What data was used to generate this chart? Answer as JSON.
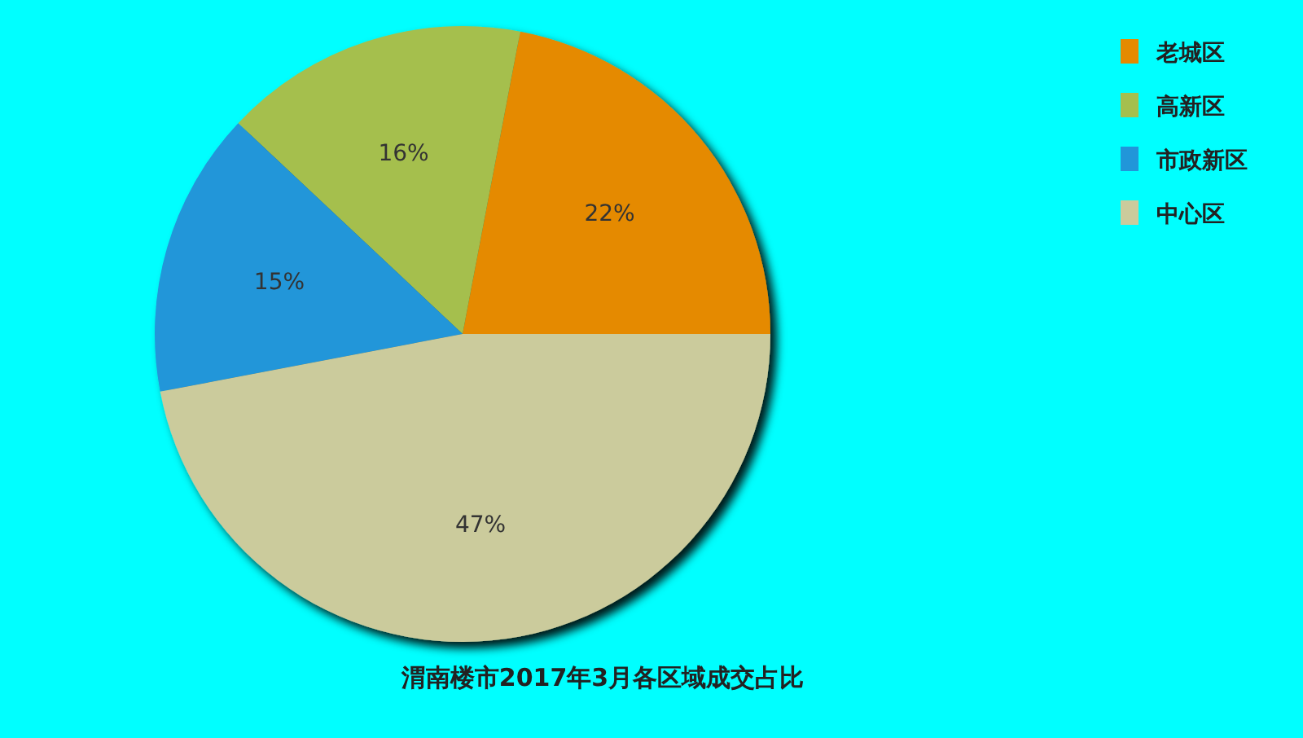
{
  "chart_data": {
    "type": "pie",
    "title": "渭南楼市2017年3月各区域成交占比",
    "categories": [
      "老城区",
      "高新区",
      "市政新区",
      "中心区"
    ],
    "values": [
      22,
      16,
      15,
      47
    ],
    "colors": [
      "#e58a00",
      "#a5bf4e",
      "#2196d9",
      "#cbcb9c"
    ],
    "value_labels": [
      "22%",
      "16%",
      "15%",
      "47%"
    ],
    "legend": "top right"
  }
}
